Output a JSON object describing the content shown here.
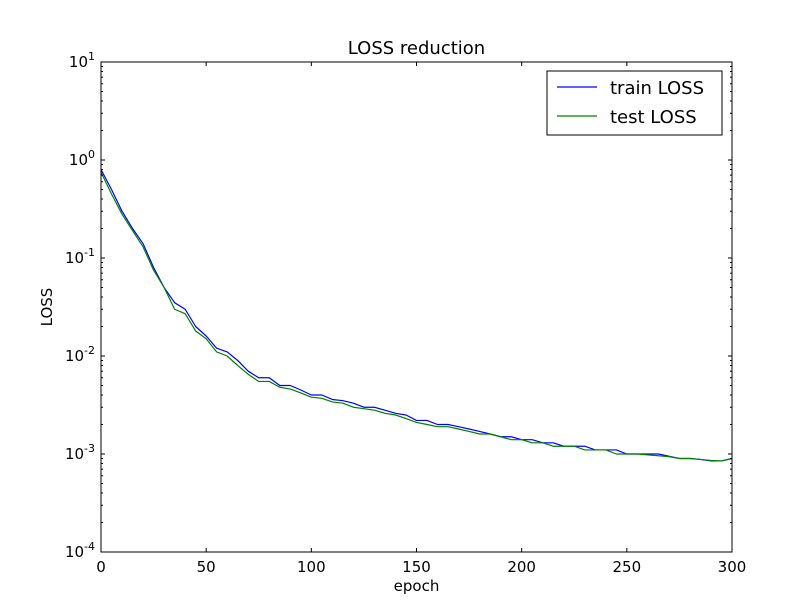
{
  "chart_data": {
    "type": "line",
    "title": "LOSS reduction",
    "xlabel": "epoch",
    "ylabel": "LOSS",
    "xlim": [
      0,
      300
    ],
    "ylim": [
      0.0001,
      10
    ],
    "yscale": "log",
    "grid": false,
    "legend_position": "top-right",
    "x_ticks": [
      0,
      50,
      100,
      150,
      200,
      250,
      300
    ],
    "x_tick_labels": [
      "0",
      "50",
      "100",
      "150",
      "200",
      "250",
      "300"
    ],
    "y_ticks": [
      0.0001,
      0.001,
      0.01,
      0.1,
      1,
      10
    ],
    "y_tick_labels": [
      {
        "base": "10",
        "exp": "-4"
      },
      {
        "base": "10",
        "exp": "-3"
      },
      {
        "base": "10",
        "exp": "-2"
      },
      {
        "base": "10",
        "exp": "-1"
      },
      {
        "base": "10",
        "exp": "0"
      },
      {
        "base": "10",
        "exp": "1"
      }
    ],
    "series": [
      {
        "name": "train LOSS",
        "color": "#0000ff",
        "x": [
          0,
          5,
          10,
          15,
          20,
          25,
          30,
          35,
          40,
          45,
          50,
          55,
          60,
          65,
          70,
          75,
          80,
          85,
          90,
          95,
          100,
          105,
          110,
          115,
          120,
          125,
          130,
          135,
          140,
          145,
          150,
          155,
          160,
          165,
          170,
          175,
          180,
          185,
          190,
          195,
          200,
          205,
          210,
          215,
          220,
          225,
          230,
          235,
          240,
          245,
          250,
          255,
          260,
          265,
          270,
          275,
          280,
          285,
          290,
          295,
          300
        ],
        "y": [
          0.8,
          0.5,
          0.3,
          0.2,
          0.14,
          0.08,
          0.05,
          0.035,
          0.03,
          0.02,
          0.016,
          0.012,
          0.011,
          0.009,
          0.007,
          0.006,
          0.006,
          0.005,
          0.005,
          0.0045,
          0.004,
          0.004,
          0.0036,
          0.0035,
          0.0033,
          0.003,
          0.003,
          0.0028,
          0.0026,
          0.0025,
          0.0022,
          0.0022,
          0.002,
          0.002,
          0.0019,
          0.0018,
          0.0017,
          0.0016,
          0.0015,
          0.0015,
          0.0014,
          0.0014,
          0.0013,
          0.0013,
          0.0012,
          0.0012,
          0.0012,
          0.0011,
          0.0011,
          0.0011,
          0.001,
          0.001,
          0.001,
          0.001,
          0.00095,
          0.0009,
          0.0009,
          0.00088,
          0.00085,
          0.00085,
          0.0009
        ]
      },
      {
        "name": "test LOSS",
        "color": "#008000",
        "x": [
          0,
          5,
          10,
          15,
          20,
          25,
          30,
          35,
          40,
          45,
          50,
          55,
          60,
          65,
          70,
          75,
          80,
          85,
          90,
          95,
          100,
          105,
          110,
          115,
          120,
          125,
          130,
          135,
          140,
          145,
          150,
          155,
          160,
          165,
          170,
          175,
          180,
          185,
          190,
          195,
          200,
          205,
          210,
          215,
          220,
          225,
          230,
          235,
          240,
          245,
          250,
          255,
          260,
          265,
          270,
          275,
          280,
          285,
          290,
          295,
          300
        ],
        "y": [
          0.75,
          0.45,
          0.28,
          0.19,
          0.13,
          0.075,
          0.05,
          0.03,
          0.027,
          0.018,
          0.015,
          0.011,
          0.01,
          0.008,
          0.0065,
          0.0055,
          0.0055,
          0.0048,
          0.0046,
          0.0042,
          0.0038,
          0.0037,
          0.0034,
          0.0033,
          0.003,
          0.0029,
          0.0028,
          0.0026,
          0.0025,
          0.0023,
          0.0021,
          0.002,
          0.0019,
          0.0019,
          0.0018,
          0.0017,
          0.0016,
          0.0016,
          0.0015,
          0.0014,
          0.0014,
          0.0013,
          0.0013,
          0.0012,
          0.0012,
          0.0012,
          0.0011,
          0.0011,
          0.0011,
          0.001,
          0.001,
          0.001,
          0.00098,
          0.00096,
          0.00094,
          0.0009,
          0.0009,
          0.00088,
          0.00086,
          0.00085,
          0.0009
        ]
      }
    ]
  }
}
